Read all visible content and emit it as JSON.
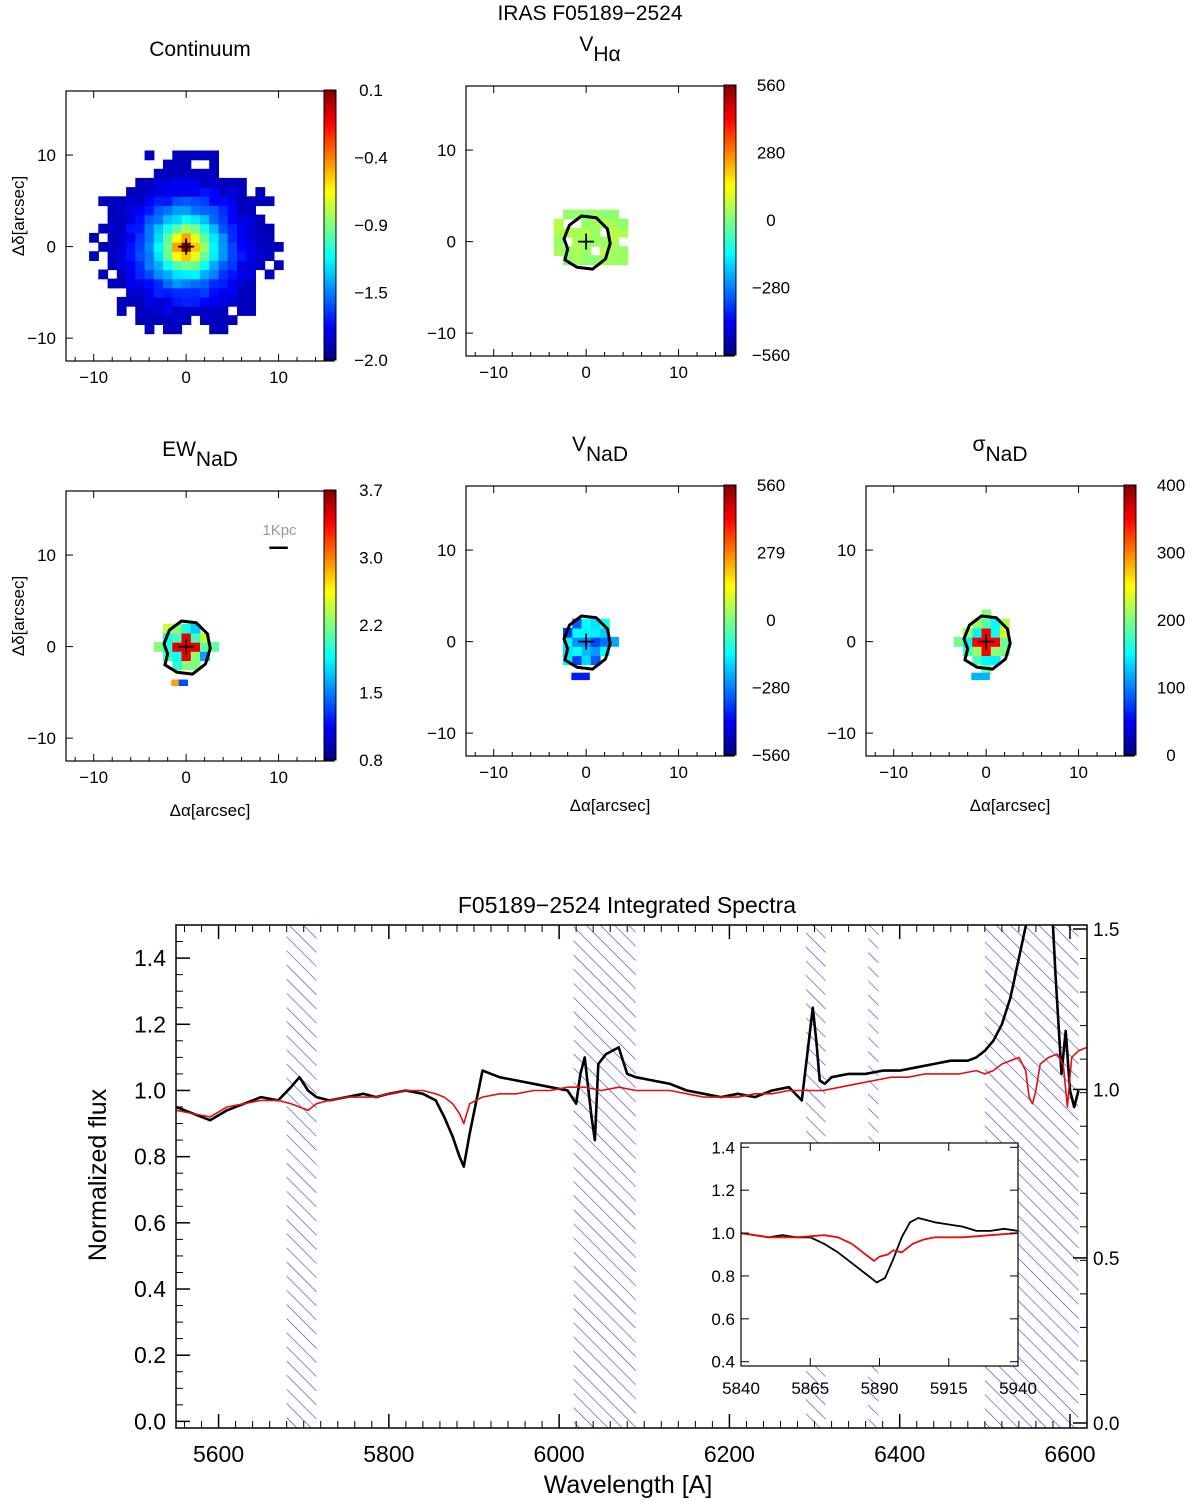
{
  "figure": {
    "title": "IRAS F05189−2524"
  },
  "colors": {
    "data": "#000000",
    "model": "#e01010",
    "mask": "#3b3bd8",
    "colormap": [
      "#00007f",
      "#0000ff",
      "#007fff",
      "#00ffff",
      "#7fff7f",
      "#ffff00",
      "#ff7f00",
      "#ff0000",
      "#7f0000"
    ]
  },
  "maps": [
    {
      "title_main": "Continuum",
      "title_sub": "",
      "show_ylabel": true,
      "show_xlabel": false,
      "kind": "continuum",
      "has_contour": false,
      "has_scalebar": false,
      "colorbar_ticks": [
        "0.1",
        "−0.4",
        "−0.9",
        "−1.5",
        "−2.0"
      ]
    },
    {
      "title_main": "V",
      "title_sub": "Hα",
      "show_ylabel": false,
      "show_xlabel": false,
      "kind": "vha",
      "has_contour": true,
      "has_scalebar": false,
      "colorbar_ticks": [
        "560",
        "280",
        "0",
        "−280",
        "−560"
      ]
    },
    {
      "title_main": "EW",
      "title_sub": "NaD",
      "show_ylabel": true,
      "show_xlabel": true,
      "kind": "ew",
      "has_contour": true,
      "has_scalebar": true,
      "colorbar_ticks": [
        "3.7",
        "3.0",
        "2.2",
        "1.5",
        "0.8"
      ]
    },
    {
      "title_main": "V",
      "title_sub": "NaD",
      "show_ylabel": false,
      "show_xlabel": true,
      "kind": "vnad",
      "has_contour": true,
      "has_scalebar": false,
      "colorbar_ticks": [
        "560",
        "279",
        "0",
        "−280",
        "−560"
      ]
    },
    {
      "title_main": "σ",
      "title_sub": "NaD",
      "show_ylabel": false,
      "show_xlabel": true,
      "kind": "sigma",
      "has_contour": true,
      "has_scalebar": false,
      "colorbar_ticks": [
        "400",
        "300",
        "200",
        "100",
        "0"
      ]
    }
  ],
  "map_axes": {
    "xlabel": "Δα[arcsec]",
    "ylabel": "Δδ[arcsec]",
    "xticks": [
      -10,
      0,
      10
    ],
    "yticks": [
      10,
      0,
      -10
    ],
    "xlim": [
      -13,
      16
    ],
    "ylim": [
      -12.5,
      17
    ],
    "scalebar_label": "1Kpc"
  },
  "chart_data": {
    "type": "line",
    "title": "F05189−2524 Integrated Spectra",
    "xlabel": "Wavelength [A]",
    "ylabel": "Normalized flux",
    "xlim": [
      5550,
      6620
    ],
    "ylim": [
      -0.02,
      1.5
    ],
    "xticks": [
      5600,
      5800,
      6000,
      6200,
      6400,
      6600
    ],
    "yticks": [
      0.0,
      0.2,
      0.4,
      0.6,
      0.8,
      1.0,
      1.2,
      1.4
    ],
    "right_ticks": [
      "1.5",
      "1.0",
      "0.5",
      "0.0"
    ],
    "masked_regions": [
      [
        5680,
        5715
      ],
      [
        6017,
        6090
      ],
      [
        6290,
        6313
      ],
      [
        6363,
        6375
      ],
      [
        6500,
        6610
      ]
    ],
    "series": [
      {
        "role": "data",
        "x": [
          5550,
          5570,
          5590,
          5610,
          5630,
          5650,
          5670,
          5685,
          5695,
          5705,
          5715,
          5730,
          5750,
          5770,
          5785,
          5800,
          5820,
          5840,
          5855,
          5865,
          5875,
          5883,
          5888,
          5895,
          5910,
          5930,
          5950,
          5970,
          5990,
          6010,
          6020,
          6025,
          6030,
          6038,
          6042,
          6046,
          6055,
          6070,
          6080,
          6090,
          6110,
          6130,
          6150,
          6170,
          6190,
          6210,
          6230,
          6250,
          6270,
          6285,
          6292,
          6298,
          6302,
          6306,
          6312,
          6320,
          6340,
          6360,
          6380,
          6400,
          6420,
          6440,
          6460,
          6480,
          6490,
          6500,
          6510,
          6520,
          6530,
          6540,
          6550,
          6556,
          6560,
          6563,
          6570,
          6578,
          6583,
          6590,
          6595,
          6600,
          6605,
          6610
        ],
        "y": [
          0.95,
          0.93,
          0.91,
          0.94,
          0.96,
          0.98,
          0.97,
          1.01,
          1.04,
          1.0,
          0.98,
          0.97,
          0.98,
          0.99,
          0.98,
          0.99,
          1.0,
          0.99,
          0.97,
          0.92,
          0.86,
          0.8,
          0.77,
          0.87,
          1.06,
          1.04,
          1.03,
          1.02,
          1.01,
          1.0,
          0.96,
          1.05,
          1.1,
          0.92,
          0.85,
          1.08,
          1.11,
          1.13,
          1.05,
          1.04,
          1.03,
          1.02,
          1.0,
          0.99,
          0.98,
          0.99,
          0.98,
          1.0,
          1.01,
          0.97,
          1.12,
          1.25,
          1.15,
          1.03,
          1.02,
          1.04,
          1.05,
          1.05,
          1.06,
          1.06,
          1.07,
          1.08,
          1.09,
          1.09,
          1.1,
          1.12,
          1.15,
          1.2,
          1.28,
          1.4,
          1.52,
          1.6,
          1.7,
          1.55,
          1.65,
          1.6,
          1.35,
          1.05,
          1.18,
          1.0,
          0.95,
          1.0
        ]
      },
      {
        "role": "model",
        "x": [
          5550,
          5570,
          5590,
          5610,
          5630,
          5650,
          5670,
          5685,
          5695,
          5705,
          5715,
          5730,
          5750,
          5770,
          5785,
          5800,
          5820,
          5840,
          5855,
          5865,
          5875,
          5883,
          5888,
          5895,
          5910,
          5930,
          5950,
          5970,
          5990,
          6010,
          6030,
          6050,
          6070,
          6090,
          6110,
          6130,
          6150,
          6170,
          6190,
          6210,
          6230,
          6250,
          6270,
          6290,
          6310,
          6330,
          6350,
          6370,
          6390,
          6410,
          6430,
          6450,
          6470,
          6490,
          6500,
          6510,
          6520,
          6530,
          6540,
          6548,
          6552,
          6556,
          6560,
          6565,
          6575,
          6585,
          6592,
          6597,
          6602,
          6610,
          6620
        ],
        "y": [
          0.94,
          0.93,
          0.92,
          0.95,
          0.96,
          0.97,
          0.97,
          0.96,
          0.95,
          0.94,
          0.96,
          0.97,
          0.98,
          0.98,
          0.98,
          0.99,
          1.0,
          1.0,
          0.99,
          0.98,
          0.96,
          0.93,
          0.9,
          0.96,
          0.98,
          0.99,
          0.99,
          1.0,
          1.0,
          1.01,
          1.01,
          1.0,
          1.01,
          1.0,
          1.0,
          1.0,
          0.99,
          0.98,
          0.98,
          0.98,
          0.99,
          0.99,
          1.0,
          1.0,
          1.0,
          1.01,
          1.02,
          1.03,
          1.04,
          1.04,
          1.05,
          1.05,
          1.05,
          1.06,
          1.05,
          1.06,
          1.08,
          1.09,
          1.1,
          1.06,
          0.98,
          0.96,
          1.0,
          1.08,
          1.1,
          1.11,
          1.08,
          0.95,
          1.1,
          1.12,
          1.13
        ]
      }
    ],
    "inset": {
      "type": "line",
      "xlim": [
        5840,
        5940
      ],
      "ylim": [
        0.38,
        1.42
      ],
      "xticks": [
        5840,
        5865,
        5890,
        5915,
        5940
      ],
      "yticks": [
        0.4,
        0.6,
        0.8,
        1.0,
        1.2,
        1.4
      ],
      "series": [
        {
          "role": "data",
          "x": [
            5840,
            5845,
            5850,
            5855,
            5860,
            5865,
            5870,
            5875,
            5880,
            5883,
            5886,
            5889,
            5892,
            5895,
            5898,
            5901,
            5904,
            5910,
            5915,
            5920,
            5925,
            5930,
            5935,
            5940
          ],
          "y": [
            1.0,
            0.99,
            0.98,
            0.99,
            0.98,
            0.98,
            0.95,
            0.91,
            0.86,
            0.83,
            0.8,
            0.77,
            0.79,
            0.88,
            0.98,
            1.05,
            1.07,
            1.05,
            1.04,
            1.03,
            1.01,
            1.01,
            1.02,
            1.01
          ]
        },
        {
          "role": "model",
          "x": [
            5840,
            5850,
            5860,
            5870,
            5875,
            5880,
            5883,
            5886,
            5888,
            5890,
            5893,
            5895,
            5898,
            5902,
            5906,
            5910,
            5920,
            5930,
            5940
          ],
          "y": [
            1.0,
            0.98,
            0.98,
            0.99,
            0.98,
            0.95,
            0.92,
            0.89,
            0.87,
            0.89,
            0.9,
            0.92,
            0.91,
            0.95,
            0.97,
            0.98,
            0.98,
            0.99,
            1.0
          ]
        }
      ]
    }
  }
}
